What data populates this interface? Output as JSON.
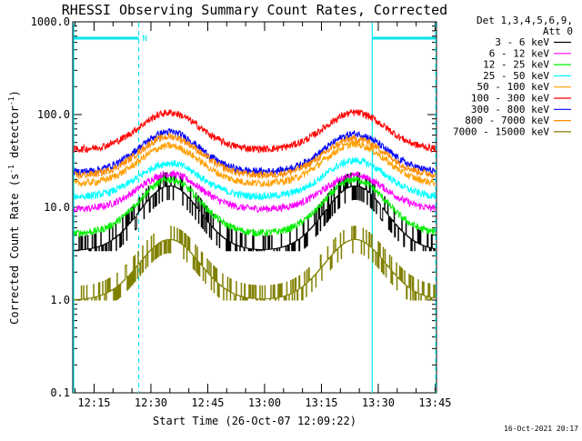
{
  "chart_data": {
    "type": "line",
    "title": "RHESSI Observing Summary Count Rates, Corrected",
    "xlabel": "Start Time (26-Oct-07 12:09:22)",
    "ylabel_main": "Corrected Count Rate (s",
    "ylabel_sup1": "-1",
    "ylabel_mid": " detector",
    "ylabel_sup2": "-1",
    "ylabel_end": ")",
    "y_scale": "log",
    "ylim": [
      0.1,
      1000
    ],
    "xlim_minutes": [
      0,
      96
    ],
    "x_tick_labels": [
      "12:15",
      "12:30",
      "12:45",
      "13:00",
      "13:15",
      "13:30",
      "13:45"
    ],
    "x_tick_minutes": [
      5.63,
      20.63,
      35.63,
      50.63,
      65.63,
      80.63,
      95.63
    ],
    "y_tick_labels": [
      "0.1",
      "1.0",
      "10.0",
      "100.0",
      "1000.0"
    ],
    "y_tick_values": [
      0.1,
      1,
      10,
      100,
      1000
    ],
    "grid": false,
    "legend_header": [
      "Det 1,3,4,5,6,9,",
      "Att 0"
    ],
    "legend_position": "right",
    "markers": {
      "solid_vlines_minutes": [
        0,
        78.8
      ],
      "dashed_vlines_minutes": [
        17.4,
        95.8
      ],
      "night_bars": [
        [
          0,
          17.4
        ],
        [
          78.8,
          95.8
        ]
      ],
      "night_label": "N"
    },
    "series": [
      {
        "name": "3 - 6 keV",
        "color": "#000000",
        "peaks": [
          17,
          17
        ],
        "base": 3.4,
        "style": "step"
      },
      {
        "name": "6 - 12 keV",
        "color": "#ff00ff",
        "peaks": [
          23,
          22
        ],
        "base": 9.5
      },
      {
        "name": "12 - 25 keV",
        "color": "#00ee00",
        "peaks": [
          20,
          20
        ],
        "base": 5.2
      },
      {
        "name": "25 - 50 keV",
        "color": "#00ffff",
        "peaks": [
          30,
          32
        ],
        "base": 13
      },
      {
        "name": "50 - 100 keV",
        "color": "#ffa000",
        "peaks": [
          46,
          48
        ],
        "base": 18
      },
      {
        "name": "100 - 300 keV",
        "color": "#ff0000",
        "peaks": [
          105,
          105
        ],
        "base": 42
      },
      {
        "name": "300 - 800 keV",
        "color": "#0000ff",
        "peaks": [
          65,
          62
        ],
        "base": 24
      },
      {
        "name": "800 - 7000 keV",
        "color": "#ff8c00",
        "peaks": [
          58,
          55
        ],
        "base": 22
      },
      {
        "name": "7000 - 15000 keV",
        "color": "#808000",
        "peaks": [
          4.5,
          4.5
        ],
        "base": 1.0,
        "style": "step"
      }
    ],
    "timestamp": "16-Oct-2021 20:17"
  }
}
